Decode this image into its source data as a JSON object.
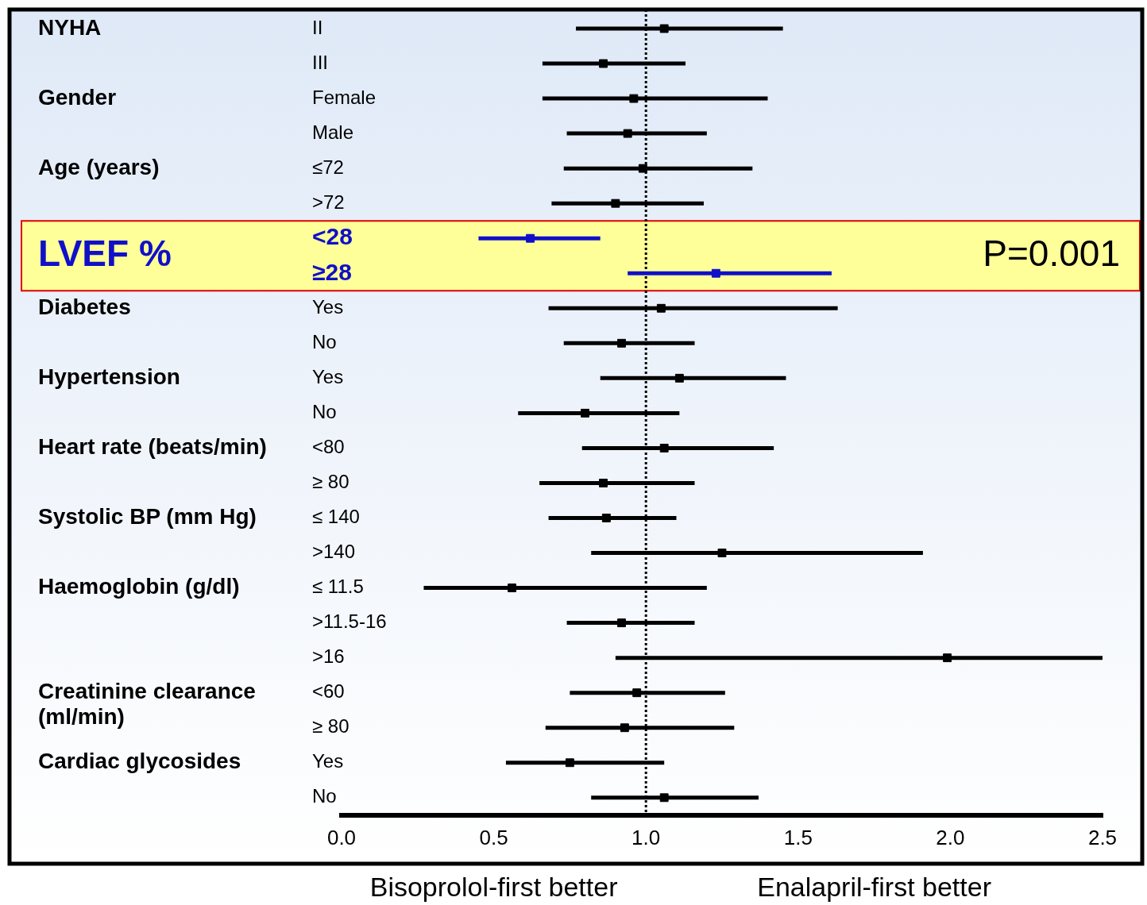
{
  "chart_data": {
    "type": "scatter",
    "orientation": "horizontal",
    "categories": [
      "II",
      "III",
      "Female",
      "Male",
      "≤72",
      ">72",
      "<28",
      "≥28",
      "Yes",
      "No",
      "Yes",
      "No",
      "<80",
      "≥ 80",
      "≤ 140",
      ">140",
      "≤ 11.5",
      ">11.5-16",
      ">16",
      "<60",
      "≥ 80",
      "Yes",
      "No"
    ],
    "series": [
      {
        "color": "#000000",
        "values": [
          1.06,
          0.86,
          null,
          null,
          null,
          null,
          null,
          null,
          null,
          null,
          null,
          null,
          null,
          null,
          null,
          null,
          null,
          null,
          null,
          null,
          null,
          null,
          null
        ],
        "errors": [
          [
            0.77,
            1.45
          ],
          [
            0.66,
            1.13
          ],
          null,
          null,
          null,
          null,
          null,
          null,
          null,
          null,
          null,
          null,
          null,
          null,
          null,
          null,
          null,
          null,
          null,
          null,
          null,
          null,
          null
        ]
      },
      {
        "color": "#000000",
        "values": [
          null,
          null,
          0.96,
          0.94,
          null,
          null,
          null,
          null,
          null,
          null,
          null,
          null,
          null,
          null,
          null,
          null,
          null,
          null,
          null,
          null,
          null,
          null,
          null
        ],
        "errors": [
          null,
          null,
          [
            0.66,
            1.4
          ],
          [
            0.74,
            1.2
          ],
          null,
          null,
          null,
          null,
          null,
          null,
          null,
          null,
          null,
          null,
          null,
          null,
          null,
          null,
          null,
          null,
          null,
          null,
          null
        ]
      },
      {
        "color": "#000000",
        "values": [
          null,
          null,
          null,
          null,
          0.99,
          0.9,
          null,
          null,
          null,
          null,
          null,
          null,
          null,
          null,
          null,
          null,
          null,
          null,
          null,
          null,
          null,
          null,
          null
        ],
        "errors": [
          null,
          null,
          null,
          null,
          [
            0.73,
            1.35
          ],
          [
            0.69,
            1.19
          ],
          null,
          null,
          null,
          null,
          null,
          null,
          null,
          null,
          null,
          null,
          null,
          null,
          null,
          null,
          null,
          null,
          null
        ]
      },
      {
        "color": "#1010c8",
        "values": [
          null,
          null,
          null,
          null,
          null,
          null,
          0.62,
          1.23,
          null,
          null,
          null,
          null,
          null,
          null,
          null,
          null,
          null,
          null,
          null,
          null,
          null,
          null,
          null
        ],
        "errors": [
          null,
          null,
          null,
          null,
          null,
          null,
          [
            0.45,
            0.85
          ],
          [
            0.94,
            1.61
          ],
          null,
          null,
          null,
          null,
          null,
          null,
          null,
          null,
          null,
          null,
          null,
          null,
          null,
          null,
          null
        ]
      },
      {
        "color": "#000000",
        "values": [
          null,
          null,
          null,
          null,
          null,
          null,
          null,
          null,
          1.05,
          0.92,
          null,
          null,
          null,
          null,
          null,
          null,
          null,
          null,
          null,
          null,
          null,
          null,
          null
        ],
        "errors": [
          null,
          null,
          null,
          null,
          null,
          null,
          null,
          null,
          [
            0.68,
            1.63
          ],
          [
            0.73,
            1.16
          ],
          null,
          null,
          null,
          null,
          null,
          null,
          null,
          null,
          null,
          null,
          null,
          null,
          null
        ]
      },
      {
        "color": "#000000",
        "values": [
          null,
          null,
          null,
          null,
          null,
          null,
          null,
          null,
          null,
          null,
          1.11,
          0.8,
          null,
          null,
          null,
          null,
          null,
          null,
          null,
          null,
          null,
          null,
          null
        ],
        "errors": [
          null,
          null,
          null,
          null,
          null,
          null,
          null,
          null,
          null,
          null,
          [
            0.85,
            1.46
          ],
          [
            0.58,
            1.11
          ],
          null,
          null,
          null,
          null,
          null,
          null,
          null,
          null,
          null,
          null,
          null
        ]
      },
      {
        "color": "#000000",
        "values": [
          null,
          null,
          null,
          null,
          null,
          null,
          null,
          null,
          null,
          null,
          null,
          null,
          1.06,
          0.86,
          null,
          null,
          null,
          null,
          null,
          null,
          null,
          null,
          null
        ],
        "errors": [
          null,
          null,
          null,
          null,
          null,
          null,
          null,
          null,
          null,
          null,
          null,
          null,
          [
            0.79,
            1.42
          ],
          [
            0.65,
            1.16
          ],
          null,
          null,
          null,
          null,
          null,
          null,
          null,
          null,
          null
        ]
      },
      {
        "color": "#000000",
        "values": [
          null,
          null,
          null,
          null,
          null,
          null,
          null,
          null,
          null,
          null,
          null,
          null,
          null,
          null,
          0.87,
          1.25,
          null,
          null,
          null,
          null,
          null,
          null,
          null
        ],
        "errors": [
          null,
          null,
          null,
          null,
          null,
          null,
          null,
          null,
          null,
          null,
          null,
          null,
          null,
          null,
          [
            0.68,
            1.1
          ],
          [
            0.82,
            1.91
          ],
          null,
          null,
          null,
          null,
          null,
          null,
          null
        ]
      },
      {
        "color": "#000000",
        "values": [
          null,
          null,
          null,
          null,
          null,
          null,
          null,
          null,
          null,
          null,
          null,
          null,
          null,
          null,
          null,
          null,
          0.56,
          0.92,
          1.99,
          null,
          null,
          null,
          null
        ],
        "errors": [
          null,
          null,
          null,
          null,
          null,
          null,
          null,
          null,
          null,
          null,
          null,
          null,
          null,
          null,
          null,
          null,
          [
            0.27,
            1.2
          ],
          [
            0.74,
            1.16
          ],
          [
            0.9,
            2.5
          ],
          null,
          null,
          null,
          null
        ]
      },
      {
        "color": "#000000",
        "values": [
          null,
          null,
          null,
          null,
          null,
          null,
          null,
          null,
          null,
          null,
          null,
          null,
          null,
          null,
          null,
          null,
          null,
          null,
          null,
          0.97,
          0.93,
          null,
          null
        ],
        "errors": [
          null,
          null,
          null,
          null,
          null,
          null,
          null,
          null,
          null,
          null,
          null,
          null,
          null,
          null,
          null,
          null,
          null,
          null,
          null,
          [
            0.75,
            1.26
          ],
          [
            0.67,
            1.29
          ],
          null,
          null
        ]
      },
      {
        "color": "#000000",
        "values": [
          null,
          null,
          null,
          null,
          null,
          null,
          null,
          null,
          null,
          null,
          null,
          null,
          null,
          null,
          null,
          null,
          null,
          null,
          null,
          null,
          null,
          0.75,
          1.06
        ],
        "errors": [
          null,
          null,
          null,
          null,
          null,
          null,
          null,
          null,
          null,
          null,
          null,
          null,
          null,
          null,
          null,
          null,
          null,
          null,
          null,
          null,
          null,
          [
            0.54,
            1.06
          ],
          [
            0.82,
            1.37
          ]
        ]
      }
    ],
    "xlim": [
      0,
      2.5
    ],
    "xticks": [
      {
        "value": 0,
        "label": "0.0"
      },
      0.5,
      {
        "value": 1,
        "label": "1.0"
      },
      1.5,
      {
        "value": 2,
        "label": "2.0"
      },
      2.5
    ],
    "ref_lines": [
      {
        "axis": "x",
        "value": 1,
        "line_style": "dotted"
      }
    ],
    "bands": [
      {
        "axis": "y",
        "from": "<28",
        "to": "≥28",
        "label": "P=0.001",
        "color": "#ffff99"
      }
    ],
    "annotations": [
      "NYHA",
      "Gender",
      "Age (years)",
      "LVEF %",
      "Diabetes",
      "Hypertension",
      "Heart rate (beats/min)",
      "Systolic BP (mm Hg)",
      "Haemoglobin (g/dl)",
      "Creatinine clearance (ml/min)",
      "Cardiac glycosides",
      "Bisoprolol-first better",
      "Enalapril-first better"
    ],
    "legend": false,
    "grid": false,
    "marker": "square"
  }
}
